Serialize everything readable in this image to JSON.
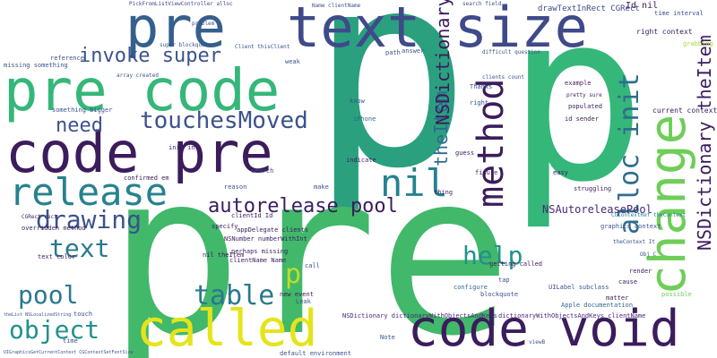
{
  "palette": {
    "navy": "#3b1c5c",
    "indigo": "#3f4a8a",
    "blue": "#355f8d",
    "teal": "#26828e",
    "cyan": "#1f9e89",
    "green": "#35b779",
    "lime": "#6ece58",
    "yellow": "#c8e020",
    "gold": "#e5e419",
    "purple": "#440154"
  },
  "words": [
    {
      "text": "p",
      "color": "#2aa07f",
      "vertical": false
    },
    {
      "text": "pre",
      "color": "#41b86a",
      "vertical": false
    },
    {
      "text": "p",
      "color": "#35b779",
      "vertical": false
    },
    {
      "text": "pre code",
      "color": "#35b779",
      "vertical": false
    },
    {
      "text": "text size",
      "color": "#3f4a8a",
      "vertical": false
    },
    {
      "text": "pre",
      "color": "#355f8d",
      "vertical": false
    },
    {
      "text": "code pre",
      "color": "#3b1c5c",
      "vertical": false
    },
    {
      "text": "code void",
      "color": "#3b1c5c",
      "vertical": false
    },
    {
      "text": "called",
      "color": "#e5e419",
      "vertical": false
    },
    {
      "text": "change",
      "color": "#6ece58",
      "vertical": true
    },
    {
      "text": "method",
      "color": "#3b1c5c",
      "vertical": true
    },
    {
      "text": "release",
      "color": "#26828e",
      "vertical": false
    },
    {
      "text": "nil",
      "color": "#26828e",
      "vertical": false
    },
    {
      "text": "alloc init",
      "color": "#2e6e8e",
      "vertical": true
    },
    {
      "text": "touchesMoved",
      "color": "#3b528b",
      "vertical": false
    },
    {
      "text": "invoke super",
      "color": "#3b528b",
      "vertical": false
    },
    {
      "text": "need",
      "color": "#3b528b",
      "vertical": false
    },
    {
      "text": "autorelease pool",
      "color": "#3b1c5c",
      "vertical": false
    },
    {
      "text": "drawing",
      "color": "#3b528b",
      "vertical": false
    },
    {
      "text": "text",
      "color": "#2a788e",
      "vertical": false
    },
    {
      "text": "table",
      "color": "#2a788e",
      "vertical": false
    },
    {
      "text": "pool",
      "color": "#2a788e",
      "vertical": false
    },
    {
      "text": "object",
      "color": "#21918c",
      "vertical": false
    },
    {
      "text": "help",
      "color": "#21918c",
      "vertical": false
    },
    {
      "text": "p",
      "color": "#bddf26",
      "vertical": false
    },
    {
      "text": "theItem",
      "color": "#31688e",
      "vertical": true
    },
    {
      "text": "NSDictionary",
      "color": "#3b1c5c",
      "vertical": true
    },
    {
      "text": "NSDictionary theItem",
      "color": "#3b1c5c",
      "vertical": true
    },
    {
      "text": "NSAutoreleasePool",
      "color": "#482878",
      "vertical": false
    },
    {
      "text": "Id nil",
      "color": "#3b1c5c",
      "vertical": false
    },
    {
      "text": "drawTextInRect CGRect",
      "color": "#3e4989",
      "vertical": false
    },
    {
      "text": "PickFromListViewController alloc",
      "color": "#3e4989",
      "vertical": false
    },
    {
      "text": "current context",
      "color": "#3b1c5c",
      "vertical": false
    },
    {
      "text": "right context",
      "color": "#3b1c5c",
      "vertical": false
    },
    {
      "text": "grabbing",
      "color": "#a0da39",
      "vertical": false
    },
    {
      "text": "Apple documentation",
      "color": "#31688e",
      "vertical": false
    },
    {
      "text": "NSDictionary dictionaryWithObjectsAndKeys",
      "color": "#482878",
      "vertical": false
    },
    {
      "text": "dictionaryWithObjectsAndKeys clientName",
      "color": "#482878",
      "vertical": false
    },
    {
      "text": "getting called",
      "color": "#3b1c5c",
      "vertical": false
    },
    {
      "text": "configure",
      "color": "#31688e",
      "vertical": false
    },
    {
      "text": "blockquote",
      "color": "#3b528b",
      "vertical": false
    },
    {
      "text": "UILabel subclass",
      "color": "#3b528b",
      "vertical": false
    },
    {
      "text": "graphics context",
      "color": "#3b528b",
      "vertical": false
    },
    {
      "text": "CGContextRef theContext",
      "color": "#26828e",
      "vertical": false
    },
    {
      "text": "NSNumber numberWithInt",
      "color": "#3b1c5c",
      "vertical": false
    },
    {
      "text": "clientName Name",
      "color": "#3b1c5c",
      "vertical": false
    },
    {
      "text": "appDelegate clients",
      "color": "#3b1c5c",
      "vertical": false
    },
    {
      "text": "nil theItem",
      "color": "#3b1c5c",
      "vertical": false
    },
    {
      "text": "clientId Id",
      "color": "#3b1c5c",
      "vertical": false
    },
    {
      "text": "specify",
      "color": "#3b1c5c",
      "vertical": false
    },
    {
      "text": "new event",
      "color": "#3b1c5c",
      "vertical": false
    },
    {
      "text": "perhaps missing",
      "color": "#3b1c5c",
      "vertical": false
    },
    {
      "text": "overridden method",
      "color": "#3b1c5c",
      "vertical": false
    },
    {
      "text": "text color",
      "color": "#3b1c5c",
      "vertical": false
    },
    {
      "text": "CGRect rect",
      "color": "#3b1c5c",
      "vertical": false
    },
    {
      "text": "confirmed em",
      "color": "#3b1c5c",
      "vertical": false
    },
    {
      "text": "init int",
      "color": "#3b1c5c",
      "vertical": false
    },
    {
      "text": "iPhone",
      "color": "#31688e",
      "vertical": false
    },
    {
      "text": "guess",
      "color": "#3b1c5c",
      "vertical": false
    },
    {
      "text": "figure",
      "color": "#3b1c5c",
      "vertical": false
    },
    {
      "text": "indicate",
      "color": "#3b1c5c",
      "vertical": false
    },
    {
      "text": "thing",
      "color": "#3b1c5c",
      "vertical": false
    },
    {
      "text": "example",
      "color": "#3b1c5c",
      "vertical": false
    },
    {
      "text": "pretty sure",
      "color": "#3b1c5c",
      "vertical": false
    },
    {
      "text": "populated",
      "color": "#3b1c5c",
      "vertical": false
    },
    {
      "text": "id sender",
      "color": "#3b1c5c",
      "vertical": false
    },
    {
      "text": "easy",
      "color": "#3b1c5c",
      "vertical": false
    },
    {
      "text": "struggling",
      "color": "#3b1c5c",
      "vertical": false
    },
    {
      "text": "render",
      "color": "#3b1c5c",
      "vertical": false
    },
    {
      "text": "cause",
      "color": "#3b1c5c",
      "vertical": false
    },
    {
      "text": "matter",
      "color": "#3b1c5c",
      "vertical": false
    },
    {
      "text": "possible",
      "color": "#6ece58",
      "vertical": false
    },
    {
      "text": "reference",
      "color": "#3b528b",
      "vertical": false
    },
    {
      "text": "something bigger",
      "color": "#3b528b",
      "vertical": false
    },
    {
      "text": "missing something",
      "color": "#3b528b",
      "vertical": false
    },
    {
      "text": "array created",
      "color": "#3b528b",
      "vertical": false
    },
    {
      "text": "super blockquote",
      "color": "#3b528b",
      "vertical": false
    },
    {
      "text": "problem",
      "color": "#3b528b",
      "vertical": false
    },
    {
      "text": "Client thisClient",
      "color": "#3b528b",
      "vertical": false
    },
    {
      "text": "Name clientName",
      "color": "#3b528b",
      "vertical": false
    },
    {
      "text": "difficult question",
      "color": "#3b528b",
      "vertical": false
    },
    {
      "text": "time interval",
      "color": "#3b528b",
      "vertical": false
    },
    {
      "text": "reason",
      "color": "#3b528b",
      "vertical": false
    },
    {
      "text": "search",
      "color": "#3b528b",
      "vertical": false
    },
    {
      "text": "make",
      "color": "#3b528b",
      "vertical": false
    },
    {
      "text": "Leak",
      "color": "#3b528b",
      "vertical": false
    },
    {
      "text": "touch",
      "color": "#3b528b",
      "vertical": false
    },
    {
      "text": "time",
      "color": "#3b528b",
      "vertical": false
    },
    {
      "text": "viewB",
      "color": "#3b528b",
      "vertical": false
    },
    {
      "text": "tap",
      "color": "#3b528b",
      "vertical": false
    },
    {
      "text": "Thanks",
      "color": "#3b528b",
      "vertical": false
    },
    {
      "text": "right",
      "color": "#3b528b",
      "vertical": false
    },
    {
      "text": "know",
      "color": "#3b528b",
      "vertical": false
    },
    {
      "text": "answer",
      "color": "#3b528b",
      "vertical": false
    },
    {
      "text": "path",
      "color": "#3b528b",
      "vertical": false
    },
    {
      "text": "weak",
      "color": "#3b528b",
      "vertical": false
    },
    {
      "text": "default environment",
      "color": "#3b528b",
      "vertical": false
    },
    {
      "text": "Note",
      "color": "#3b528b",
      "vertical": false
    },
    {
      "text": "call",
      "color": "#3b528b",
      "vertical": false
    },
    {
      "text": "Obj C",
      "color": "#3b528b",
      "vertical": false
    },
    {
      "text": "theContext It",
      "color": "#3b528b",
      "vertical": false
    },
    {
      "text": "theList NSLocalizedString",
      "color": "#3b528b",
      "vertical": false
    },
    {
      "text": "UIGraphicsGetCurrentContext CGContextSetFontSize",
      "color": "#3b528b",
      "vertical": false
    },
    {
      "text": "search field",
      "color": "#3b528b",
      "vertical": false
    },
    {
      "text": "clients count",
      "color": "#3b528b",
      "vertical": false
    }
  ]
}
